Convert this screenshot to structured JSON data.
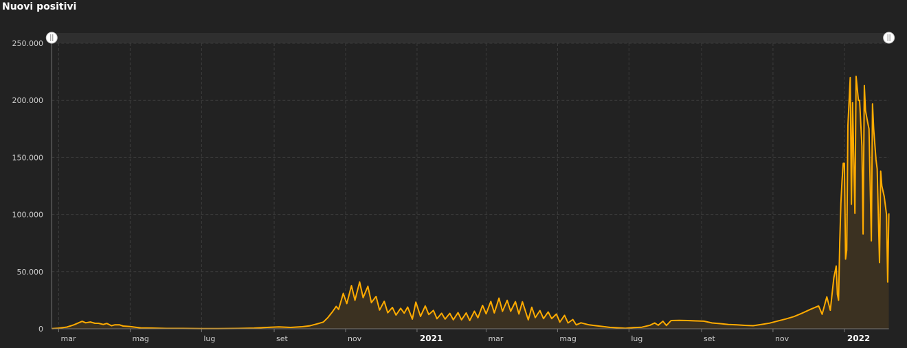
{
  "title": "Nuovi positivi",
  "colors": {
    "background": "#222222",
    "line": "#ffab00",
    "fill": "#3b3121",
    "grid": "#3c3c3c",
    "navigator": "#2f2f2f"
  },
  "navigator": {
    "handle_icon": "drag-handle-icon"
  },
  "chart_data": {
    "type": "area",
    "title": "Nuovi positivi",
    "xlabel": "",
    "ylabel": "",
    "ylim": [
      0,
      250000
    ],
    "xlim": [
      "2020-02-24",
      "2022-02-08"
    ],
    "grid": true,
    "y_ticks": [
      {
        "value": 0,
        "label": "0"
      },
      {
        "value": 50000,
        "label": "50.000"
      },
      {
        "value": 100000,
        "label": "100.000"
      },
      {
        "value": 150000,
        "label": "150.000"
      },
      {
        "value": 200000,
        "label": "200.000"
      },
      {
        "value": 250000,
        "label": "250.000"
      }
    ],
    "x_ticks": [
      {
        "date": "2020-03-01",
        "label": "mar",
        "year": false
      },
      {
        "date": "2020-05-01",
        "label": "mag",
        "year": false
      },
      {
        "date": "2020-07-01",
        "label": "lug",
        "year": false
      },
      {
        "date": "2020-09-01",
        "label": "set",
        "year": false
      },
      {
        "date": "2020-11-01",
        "label": "nov",
        "year": false
      },
      {
        "date": "2021-01-01",
        "label": "2021",
        "year": true
      },
      {
        "date": "2021-03-01",
        "label": "mar",
        "year": false
      },
      {
        "date": "2021-05-01",
        "label": "mag",
        "year": false
      },
      {
        "date": "2021-07-01",
        "label": "lug",
        "year": false
      },
      {
        "date": "2021-09-01",
        "label": "set",
        "year": false
      },
      {
        "date": "2021-11-01",
        "label": "nov",
        "year": false
      },
      {
        "date": "2022-01-01",
        "label": "2022",
        "year": true
      }
    ],
    "series": [
      {
        "points": [
          [
            "2020-02-24",
            200
          ],
          [
            "2020-03-01",
            570
          ],
          [
            "2020-03-08",
            1500
          ],
          [
            "2020-03-14",
            3500
          ],
          [
            "2020-03-21",
            6550
          ],
          [
            "2020-03-24",
            5200
          ],
          [
            "2020-03-28",
            5970
          ],
          [
            "2020-04-01",
            4780
          ],
          [
            "2020-04-04",
            4800
          ],
          [
            "2020-04-08",
            3800
          ],
          [
            "2020-04-11",
            4700
          ],
          [
            "2020-04-15",
            2700
          ],
          [
            "2020-04-18",
            3500
          ],
          [
            "2020-04-22",
            3400
          ],
          [
            "2020-04-25",
            2400
          ],
          [
            "2020-05-01",
            1900
          ],
          [
            "2020-05-10",
            800
          ],
          [
            "2020-05-20",
            600
          ],
          [
            "2020-06-01",
            300
          ],
          [
            "2020-06-15",
            300
          ],
          [
            "2020-07-01",
            200
          ],
          [
            "2020-07-15",
            200
          ],
          [
            "2020-08-01",
            300
          ],
          [
            "2020-08-15",
            600
          ],
          [
            "2020-08-29",
            1400
          ],
          [
            "2020-09-05",
            1700
          ],
          [
            "2020-09-15",
            1200
          ],
          [
            "2020-09-25",
            1800
          ],
          [
            "2020-10-01",
            2500
          ],
          [
            "2020-10-08",
            4400
          ],
          [
            "2020-10-13",
            5900
          ],
          [
            "2020-10-17",
            10000
          ],
          [
            "2020-10-21",
            15200
          ],
          [
            "2020-10-24",
            19600
          ],
          [
            "2020-10-26",
            17000
          ],
          [
            "2020-10-30",
            31000
          ],
          [
            "2020-11-02",
            22000
          ],
          [
            "2020-11-06",
            37800
          ],
          [
            "2020-11-09",
            25000
          ],
          [
            "2020-11-13",
            40900
          ],
          [
            "2020-11-16",
            27300
          ],
          [
            "2020-11-20",
            37200
          ],
          [
            "2020-11-23",
            22900
          ],
          [
            "2020-11-27",
            28300
          ],
          [
            "2020-11-30",
            16400
          ],
          [
            "2020-12-04",
            24100
          ],
          [
            "2020-12-07",
            14000
          ],
          [
            "2020-12-11",
            18700
          ],
          [
            "2020-12-14",
            12000
          ],
          [
            "2020-12-18",
            17900
          ],
          [
            "2020-12-21",
            13700
          ],
          [
            "2020-12-24",
            19000
          ],
          [
            "2020-12-28",
            8500
          ],
          [
            "2020-12-31",
            23400
          ],
          [
            "2021-01-04",
            10800
          ],
          [
            "2021-01-08",
            20000
          ],
          [
            "2021-01-11",
            12500
          ],
          [
            "2021-01-15",
            16100
          ],
          [
            "2021-01-18",
            8800
          ],
          [
            "2021-01-22",
            13600
          ],
          [
            "2021-01-25",
            8500
          ],
          [
            "2021-01-29",
            13500
          ],
          [
            "2021-02-01",
            7900
          ],
          [
            "2021-02-05",
            14200
          ],
          [
            "2021-02-08",
            7900
          ],
          [
            "2021-02-12",
            13900
          ],
          [
            "2021-02-15",
            7300
          ],
          [
            "2021-02-19",
            15400
          ],
          [
            "2021-02-22",
            9600
          ],
          [
            "2021-02-26",
            20500
          ],
          [
            "2021-03-01",
            13100
          ],
          [
            "2021-03-05",
            24000
          ],
          [
            "2021-03-08",
            13900
          ],
          [
            "2021-03-12",
            26800
          ],
          [
            "2021-03-15",
            15300
          ],
          [
            "2021-03-19",
            24900
          ],
          [
            "2021-03-22",
            15300
          ],
          [
            "2021-03-26",
            23800
          ],
          [
            "2021-03-29",
            12900
          ],
          [
            "2021-04-01",
            23600
          ],
          [
            "2021-04-06",
            7800
          ],
          [
            "2021-04-09",
            18900
          ],
          [
            "2021-04-12",
            9800
          ],
          [
            "2021-04-16",
            15900
          ],
          [
            "2021-04-19",
            8900
          ],
          [
            "2021-04-23",
            14700
          ],
          [
            "2021-04-26",
            8900
          ],
          [
            "2021-04-30",
            12900
          ],
          [
            "2021-05-03",
            5900
          ],
          [
            "2021-05-07",
            11800
          ],
          [
            "2021-05-10",
            5100
          ],
          [
            "2021-05-14",
            8100
          ],
          [
            "2021-05-17",
            3400
          ],
          [
            "2021-05-21",
            5200
          ],
          [
            "2021-05-28",
            3400
          ],
          [
            "2021-06-04",
            2500
          ],
          [
            "2021-06-15",
            1200
          ],
          [
            "2021-06-28",
            400
          ],
          [
            "2021-07-05",
            1000
          ],
          [
            "2021-07-12",
            1400
          ],
          [
            "2021-07-19",
            3100
          ],
          [
            "2021-07-23",
            5100
          ],
          [
            "2021-07-26",
            3100
          ],
          [
            "2021-07-30",
            6600
          ],
          [
            "2021-08-02",
            2900
          ],
          [
            "2021-08-06",
            7200
          ],
          [
            "2021-08-13",
            7400
          ],
          [
            "2021-08-20",
            7200
          ],
          [
            "2021-08-27",
            6900
          ],
          [
            "2021-09-03",
            6700
          ],
          [
            "2021-09-10",
            5100
          ],
          [
            "2021-09-17",
            4500
          ],
          [
            "2021-09-24",
            3800
          ],
          [
            "2021-10-01",
            3400
          ],
          [
            "2021-10-08",
            3000
          ],
          [
            "2021-10-15",
            2700
          ],
          [
            "2021-10-22",
            3800
          ],
          [
            "2021-10-29",
            4900
          ],
          [
            "2021-11-05",
            6800
          ],
          [
            "2021-11-12",
            8600
          ],
          [
            "2021-11-19",
            10700
          ],
          [
            "2021-11-26",
            13700
          ],
          [
            "2021-12-03",
            17000
          ],
          [
            "2021-12-10",
            20000
          ],
          [
            "2021-12-13",
            12700
          ],
          [
            "2021-12-17",
            28000
          ],
          [
            "2021-12-20",
            16200
          ],
          [
            "2021-12-23",
            44600
          ],
          [
            "2021-12-24",
            50000
          ],
          [
            "2021-12-25",
            55000
          ],
          [
            "2021-12-26",
            30000
          ],
          [
            "2021-12-27",
            25000
          ],
          [
            "2021-12-28",
            75000
          ],
          [
            "2021-12-29",
            110000
          ],
          [
            "2021-12-30",
            130000
          ],
          [
            "2021-12-31",
            145000
          ],
          [
            "2022-01-01",
            145000
          ],
          [
            "2022-01-02",
            61000
          ],
          [
            "2022-01-03",
            69000
          ],
          [
            "2022-01-04",
            178000
          ],
          [
            "2022-01-06",
            220000
          ],
          [
            "2022-01-07",
            109000
          ],
          [
            "2022-01-08",
            198000
          ],
          [
            "2022-01-10",
            101000
          ],
          [
            "2022-01-11",
            221000
          ],
          [
            "2022-01-13",
            200000
          ],
          [
            "2022-01-14",
            200000
          ],
          [
            "2022-01-15",
            180000
          ],
          [
            "2022-01-16",
            160000
          ],
          [
            "2022-01-17",
            83000
          ],
          [
            "2022-01-18",
            213000
          ],
          [
            "2022-01-19",
            191000
          ],
          [
            "2022-01-21",
            180000
          ],
          [
            "2022-01-22",
            175000
          ],
          [
            "2022-01-24",
            77000
          ],
          [
            "2022-01-25",
            197000
          ],
          [
            "2022-01-26",
            175000
          ],
          [
            "2022-01-28",
            148000
          ],
          [
            "2022-01-29",
            140000
          ],
          [
            "2022-01-31",
            58000
          ],
          [
            "2022-02-01",
            138000
          ],
          [
            "2022-02-02",
            125000
          ],
          [
            "2022-02-04",
            116000
          ],
          [
            "2022-02-05",
            108000
          ],
          [
            "2022-02-06",
            100000
          ],
          [
            "2022-02-07",
            41000
          ],
          [
            "2022-02-08",
            101000
          ]
        ]
      }
    ]
  }
}
